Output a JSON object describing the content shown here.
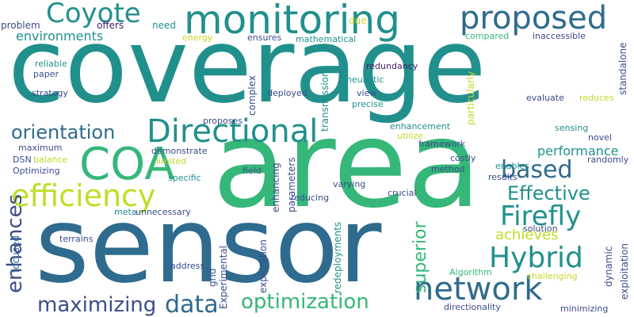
{
  "words": {
    "coverage": "coverage",
    "area": "area",
    "sensor": "sensor",
    "monitoring": "monitoring",
    "proposed": "proposed",
    "directional": "Directional",
    "coa": "COA",
    "efficiency": "efficiency",
    "network": "network",
    "hybrid": "Hybrid",
    "firefly": "Firefly",
    "coyote": "Coyote",
    "optimization": "optimization",
    "data": "data",
    "maximizing": "maximizing",
    "based": "based",
    "effective": "Effective",
    "orientation": "orientation",
    "enhances": "enhances",
    "superior": "superior",
    "achieves": "achieves",
    "environments": "environments",
    "performance": "performance",
    "problem": "problem",
    "offers": "offers",
    "need": "need",
    "due": "due",
    "energy": "energy",
    "ensures": "ensures",
    "mathematical": "mathematical",
    "compared": "compared",
    "inaccessible": "inaccessible",
    "reliable": "reliable",
    "paper": "paper",
    "redundancy": "redundancy",
    "heuristic": "heuristic",
    "strategy": "strategy",
    "complex": "complex",
    "deployed": "deployed",
    "precise": "precise",
    "view": "view",
    "transmission": "transmission",
    "particularly": "particularly",
    "evaluate": "evaluate",
    "reduces": "reduces",
    "standalone": "standalone",
    "proposes": "proposes",
    "enhancement": "enhancement",
    "sensing": "sensing",
    "utilize": "utilize",
    "novel": "novel",
    "maximum": "maximum",
    "demonstrate": "demonstrate",
    "framework": "framework",
    "randomly": "randomly",
    "dsn": "DSN",
    "balance": "balance",
    "limited": "limited",
    "costly": "costly",
    "enables": "enables",
    "optimizing": "Optimizing",
    "specific": "specific",
    "field": "field",
    "method": "method",
    "results": "results",
    "varying": "varying",
    "crucial": "crucial",
    "meta": "meta",
    "unnecessary": "unnecessary",
    "parameters": "parameters",
    "enhancing": "enhancing",
    "reducing": "reducing",
    "solution": "solution",
    "focused": "focused",
    "terrains": "terrains",
    "address": "address",
    "grid": "grid",
    "experimental": "Experimental",
    "exploration": "exploration",
    "redeployments": "redeployments",
    "algorithm": "Algorithm",
    "challenging": "challenging",
    "dynamic": "dynamic",
    "exploitation": "exploitation",
    "directionality": "directionality",
    "minimizing": "minimizing"
  },
  "colors": {
    "purple": "#46206b",
    "indigo": "#3a4c8a",
    "blue": "#2f6b8e",
    "teal": "#21908d",
    "green": "#35b779",
    "light-green": "#7ad151",
    "yellow": "#c8d62a"
  }
}
